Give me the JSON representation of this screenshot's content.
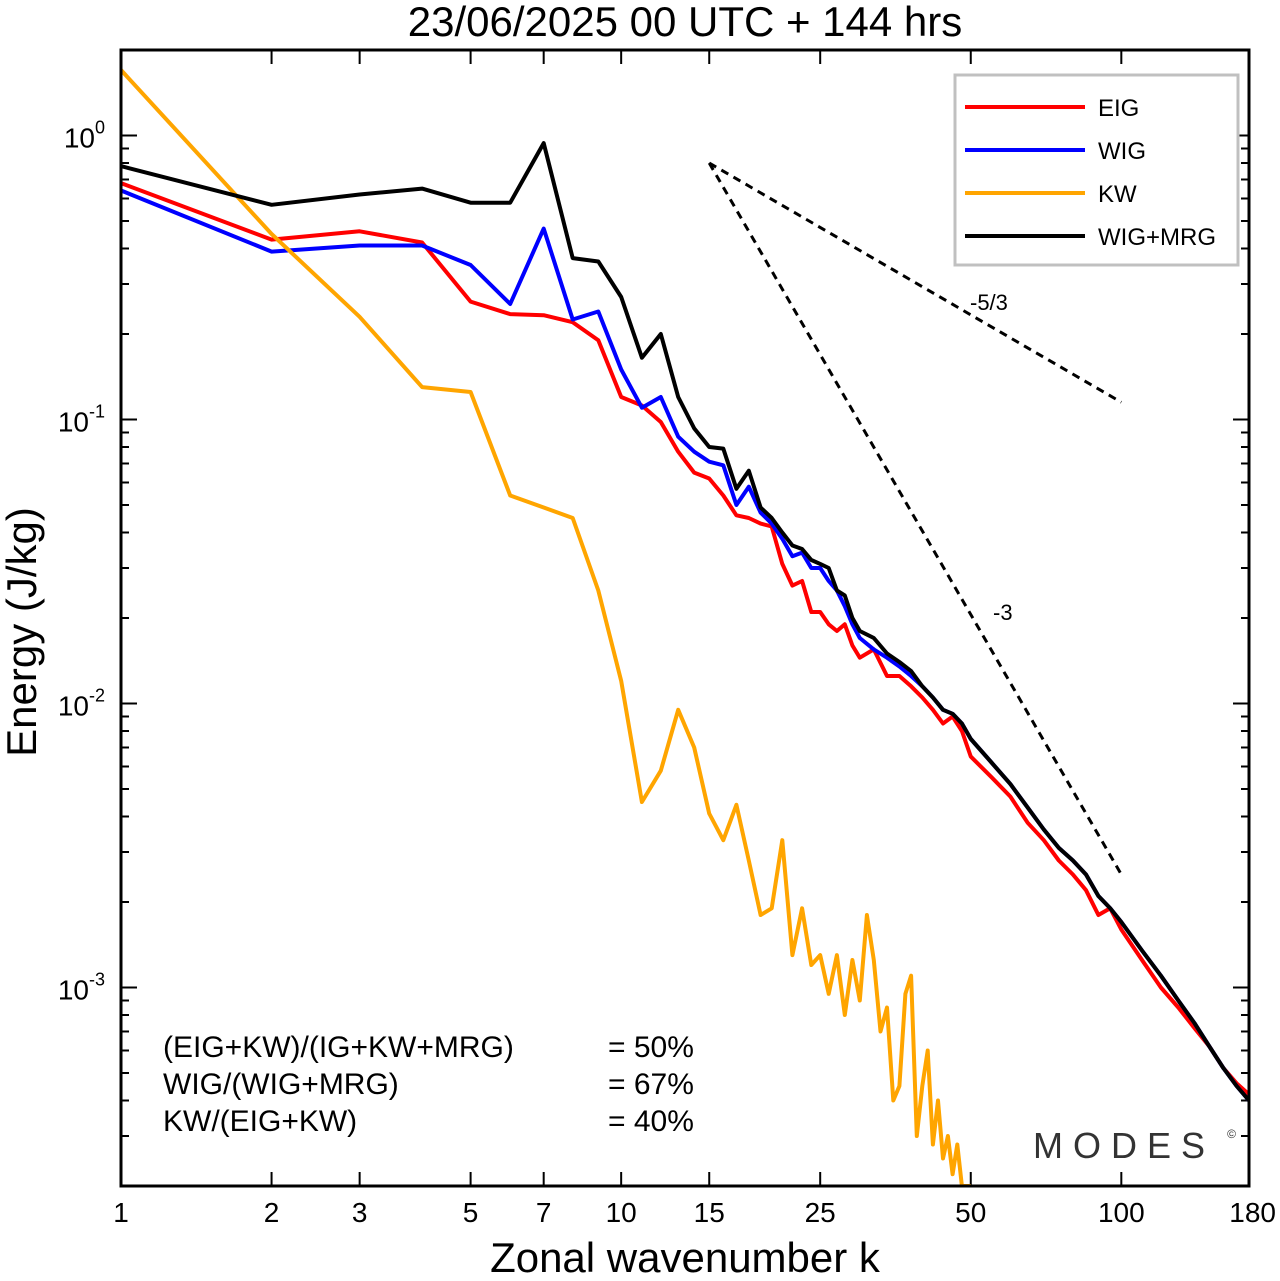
{
  "chart_data": {
    "type": "line",
    "title": "23/06/2025  00 UTC  + 144 hrs",
    "xlabel": "Zonal wavenumber k",
    "ylabel": "Energy (J/kg)",
    "x_scale": "log",
    "y_scale": "log",
    "xlim": [
      1,
      180
    ],
    "ylim": [
      0.0002,
      2
    ],
    "x_ticks": [
      1,
      2,
      3,
      5,
      7,
      10,
      15,
      25,
      50,
      100,
      180
    ],
    "x_tick_labels": [
      "1",
      "2",
      "3",
      "5",
      "7",
      "10",
      "15",
      "25",
      "50",
      "100",
      "180"
    ],
    "y_ticks": [
      1,
      0.1,
      0.01,
      0.001
    ],
    "y_tick_labels": [
      {
        "base": "10",
        "exp": "0"
      },
      {
        "base": "10",
        "exp": "-1"
      },
      {
        "base": "10",
        "exp": "-2"
      },
      {
        "base": "10",
        "exp": "-3"
      }
    ],
    "grid": false,
    "legend_position": "top-right",
    "series": [
      {
        "name": "EIG",
        "color": "#ff0000",
        "points": [
          [
            1,
            0.68
          ],
          [
            2,
            0.43
          ],
          [
            3,
            0.46
          ],
          [
            4,
            0.42
          ],
          [
            5,
            0.26
          ],
          [
            6,
            0.235
          ],
          [
            7,
            0.233
          ],
          [
            8,
            0.22
          ],
          [
            9,
            0.19
          ],
          [
            10,
            0.12
          ],
          [
            11,
            0.112
          ],
          [
            12,
            0.098
          ],
          [
            13,
            0.077
          ],
          [
            14,
            0.065
          ],
          [
            15,
            0.062
          ],
          [
            16,
            0.054
          ],
          [
            17,
            0.046
          ],
          [
            18,
            0.045
          ],
          [
            19,
            0.043
          ],
          [
            20,
            0.042
          ],
          [
            21,
            0.031
          ],
          [
            22,
            0.026
          ],
          [
            23,
            0.027
          ],
          [
            24,
            0.021
          ],
          [
            25,
            0.021
          ],
          [
            26,
            0.019
          ],
          [
            27,
            0.018
          ],
          [
            28,
            0.019
          ],
          [
            29,
            0.016
          ],
          [
            30,
            0.0145
          ],
          [
            32,
            0.0155
          ],
          [
            34,
            0.0125
          ],
          [
            36,
            0.0125
          ],
          [
            38,
            0.0115
          ],
          [
            40,
            0.0105
          ],
          [
            42,
            0.0095
          ],
          [
            44,
            0.0085
          ],
          [
            46,
            0.009
          ],
          [
            48,
            0.008
          ],
          [
            50,
            0.0065
          ],
          [
            55,
            0.0055
          ],
          [
            60,
            0.0047
          ],
          [
            65,
            0.0038
          ],
          [
            70,
            0.0033
          ],
          [
            75,
            0.0028
          ],
          [
            80,
            0.0025
          ],
          [
            85,
            0.0022
          ],
          [
            90,
            0.0018
          ],
          [
            95,
            0.0019
          ],
          [
            100,
            0.0016
          ],
          [
            110,
            0.00125
          ],
          [
            120,
            0.001
          ],
          [
            130,
            0.00085
          ],
          [
            140,
            0.00072
          ],
          [
            150,
            0.00062
          ],
          [
            160,
            0.00052
          ],
          [
            170,
            0.00046
          ],
          [
            180,
            0.00042
          ]
        ]
      },
      {
        "name": "WIG",
        "color": "#0000ff",
        "points": [
          [
            1,
            0.64
          ],
          [
            2,
            0.39
          ],
          [
            3,
            0.41
          ],
          [
            4,
            0.41
          ],
          [
            5,
            0.35
          ],
          [
            6,
            0.255
          ],
          [
            7,
            0.47
          ],
          [
            8,
            0.225
          ],
          [
            9,
            0.24
          ],
          [
            10,
            0.15
          ],
          [
            11,
            0.11
          ],
          [
            12,
            0.12
          ],
          [
            13,
            0.087
          ],
          [
            14,
            0.077
          ],
          [
            15,
            0.071
          ],
          [
            16,
            0.069
          ],
          [
            17,
            0.05
          ],
          [
            18,
            0.058
          ],
          [
            19,
            0.047
          ],
          [
            20,
            0.043
          ],
          [
            21,
            0.038
          ],
          [
            22,
            0.033
          ],
          [
            23,
            0.034
          ],
          [
            24,
            0.03
          ],
          [
            25,
            0.03
          ],
          [
            26,
            0.027
          ],
          [
            27,
            0.025
          ],
          [
            28,
            0.022
          ],
          [
            29,
            0.019
          ],
          [
            30,
            0.017
          ],
          [
            32,
            0.0155
          ],
          [
            34,
            0.0145
          ],
          [
            36,
            0.0135
          ],
          [
            38,
            0.0125
          ],
          [
            40,
            0.0115
          ],
          [
            42,
            0.0105
          ],
          [
            44,
            0.0095
          ],
          [
            46,
            0.0092
          ],
          [
            48,
            0.0085
          ],
          [
            50,
            0.0075
          ],
          [
            55,
            0.0062
          ],
          [
            60,
            0.0052
          ],
          [
            65,
            0.0043
          ],
          [
            70,
            0.0036
          ],
          [
            75,
            0.0031
          ],
          [
            80,
            0.0028
          ],
          [
            85,
            0.0025
          ],
          [
            90,
            0.0021
          ],
          [
            95,
            0.0019
          ],
          [
            100,
            0.0017
          ],
          [
            110,
            0.00135
          ],
          [
            120,
            0.0011
          ],
          [
            130,
            0.0009
          ],
          [
            140,
            0.00075
          ],
          [
            150,
            0.00062
          ],
          [
            160,
            0.00052
          ],
          [
            170,
            0.00045
          ],
          [
            180,
            0.0004
          ]
        ]
      },
      {
        "name": "KW",
        "color": "#ffa500",
        "points": [
          [
            1,
            1.7
          ],
          [
            2,
            0.45
          ],
          [
            3,
            0.23
          ],
          [
            4,
            0.13
          ],
          [
            5,
            0.125
          ],
          [
            6,
            0.054
          ],
          [
            7,
            0.049
          ],
          [
            8,
            0.045
          ],
          [
            9,
            0.025
          ],
          [
            10,
            0.012
          ],
          [
            11,
            0.0045
          ],
          [
            12,
            0.0058
          ],
          [
            13,
            0.0095
          ],
          [
            14,
            0.007
          ],
          [
            15,
            0.0041
          ],
          [
            16,
            0.0033
          ],
          [
            17,
            0.0044
          ],
          [
            18,
            0.0028
          ],
          [
            19,
            0.0018
          ],
          [
            20,
            0.0019
          ],
          [
            21,
            0.0033
          ],
          [
            22,
            0.0013
          ],
          [
            23,
            0.0019
          ],
          [
            24,
            0.0012
          ],
          [
            25,
            0.0013
          ],
          [
            26,
            0.00095
          ],
          [
            27,
            0.0013
          ],
          [
            28,
            0.0008
          ],
          [
            29,
            0.00125
          ],
          [
            30,
            0.0009
          ],
          [
            31,
            0.0018
          ],
          [
            32,
            0.00125
          ],
          [
            33,
            0.0007
          ],
          [
            34,
            0.00085
          ],
          [
            35,
            0.0004
          ],
          [
            36,
            0.00045
          ],
          [
            37,
            0.00095
          ],
          [
            38,
            0.0011
          ],
          [
            39,
            0.0003
          ],
          [
            40,
            0.00045
          ],
          [
            41,
            0.0006
          ],
          [
            42,
            0.00028
          ],
          [
            43,
            0.0004
          ],
          [
            44,
            0.00025
          ],
          [
            45,
            0.0003
          ],
          [
            46,
            0.00022
          ],
          [
            47,
            0.00028
          ],
          [
            48,
            0.0002
          ],
          [
            50,
            0.0002
          ]
        ]
      },
      {
        "name": "WIG+MRG",
        "color": "#000000",
        "points": [
          [
            1,
            0.78
          ],
          [
            2,
            0.57
          ],
          [
            3,
            0.62
          ],
          [
            4,
            0.65
          ],
          [
            5,
            0.58
          ],
          [
            6,
            0.58
          ],
          [
            7,
            0.94
          ],
          [
            8,
            0.37
          ],
          [
            9,
            0.36
          ],
          [
            10,
            0.27
          ],
          [
            11,
            0.165
          ],
          [
            12,
            0.2
          ],
          [
            13,
            0.12
          ],
          [
            14,
            0.093
          ],
          [
            15,
            0.08
          ],
          [
            16,
            0.079
          ],
          [
            17,
            0.057
          ],
          [
            18,
            0.066
          ],
          [
            19,
            0.049
          ],
          [
            20,
            0.045
          ],
          [
            21,
            0.04
          ],
          [
            22,
            0.036
          ],
          [
            23,
            0.035
          ],
          [
            24,
            0.032
          ],
          [
            25,
            0.031
          ],
          [
            26,
            0.03
          ],
          [
            27,
            0.025
          ],
          [
            28,
            0.024
          ],
          [
            29,
            0.02
          ],
          [
            30,
            0.018
          ],
          [
            32,
            0.017
          ],
          [
            34,
            0.015
          ],
          [
            36,
            0.014
          ],
          [
            38,
            0.013
          ],
          [
            40,
            0.0115
          ],
          [
            42,
            0.0105
          ],
          [
            44,
            0.0095
          ],
          [
            46,
            0.0092
          ],
          [
            48,
            0.0085
          ],
          [
            50,
            0.0075
          ],
          [
            55,
            0.0062
          ],
          [
            60,
            0.0052
          ],
          [
            65,
            0.0043
          ],
          [
            70,
            0.0036
          ],
          [
            75,
            0.0031
          ],
          [
            80,
            0.0028
          ],
          [
            85,
            0.0025
          ],
          [
            90,
            0.0021
          ],
          [
            95,
            0.0019
          ],
          [
            100,
            0.0017
          ],
          [
            110,
            0.00135
          ],
          [
            120,
            0.0011
          ],
          [
            130,
            0.0009
          ],
          [
            140,
            0.00075
          ],
          [
            150,
            0.00062
          ],
          [
            160,
            0.00052
          ],
          [
            170,
            0.00045
          ],
          [
            180,
            0.0004
          ]
        ]
      }
    ],
    "reference_slopes": [
      {
        "label": "-5/3",
        "start": [
          15,
          0.8
        ],
        "end": [
          100,
          0.115
        ]
      },
      {
        "label": "-3",
        "start": [
          15,
          0.8
        ],
        "end": [
          100,
          0.0025
        ]
      }
    ],
    "annotations": [
      {
        "expr": "(EIG+KW)/(IG+KW+MRG)",
        "value": "= 50%"
      },
      {
        "expr": "WIG/(WIG+MRG)",
        "value": "= 67%"
      },
      {
        "expr": "KW/(EIG+KW)",
        "value": "= 40%"
      }
    ],
    "watermark": "MODES",
    "watermark_mark": "©"
  }
}
